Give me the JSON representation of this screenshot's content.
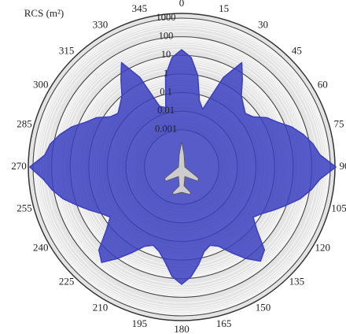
{
  "chart_data": {
    "type": "polar",
    "title": "RCS (m²)",
    "x": [
      0,
      5,
      10,
      15,
      20,
      25,
      30,
      35,
      40,
      45,
      50,
      55,
      60,
      65,
      70,
      75,
      80,
      85,
      90,
      95,
      100,
      105,
      110,
      115,
      120,
      125,
      130,
      135,
      140,
      145,
      150,
      155,
      160,
      165,
      170,
      175,
      180,
      185,
      190,
      195,
      200,
      205,
      210,
      215,
      220,
      225,
      230,
      235,
      240,
      245,
      250,
      255,
      260,
      265,
      270,
      275,
      280,
      285,
      290,
      295,
      300,
      305,
      310,
      315,
      320,
      325,
      330,
      335,
      340,
      345,
      350,
      355
    ],
    "series": [
      {
        "color": "#3a3fc0",
        "values": [
          20,
          8,
          1,
          0.05,
          0.02,
          2,
          30,
          5,
          1,
          0.5,
          0.3,
          0.5,
          2,
          5,
          20,
          60,
          150,
          300,
          2000,
          300,
          120,
          40,
          10,
          3,
          1,
          0.5,
          2,
          20,
          40,
          10,
          2,
          0.5,
          0.3,
          0.5,
          2,
          8,
          20,
          8,
          1.5,
          0.5,
          0.3,
          0.5,
          2,
          10,
          50,
          20,
          2,
          0.5,
          1,
          3,
          10,
          40,
          120,
          300,
          1500,
          250,
          150,
          60,
          20,
          5,
          2,
          0.5,
          0.3,
          0.5,
          1,
          5,
          30,
          2,
          0.03,
          0.02,
          1,
          8
        ]
      }
    ],
    "xticks": [
      0,
      15,
      30,
      45,
      60,
      75,
      90,
      105,
      120,
      135,
      150,
      165,
      180,
      195,
      210,
      225,
      240,
      255,
      270,
      285,
      300,
      315,
      330,
      345
    ],
    "rlim": [
      1e-05,
      1000
    ],
    "rticks": [
      0.001,
      0.01,
      0.1,
      1,
      10,
      100,
      1000
    ],
    "log_r": true
  }
}
